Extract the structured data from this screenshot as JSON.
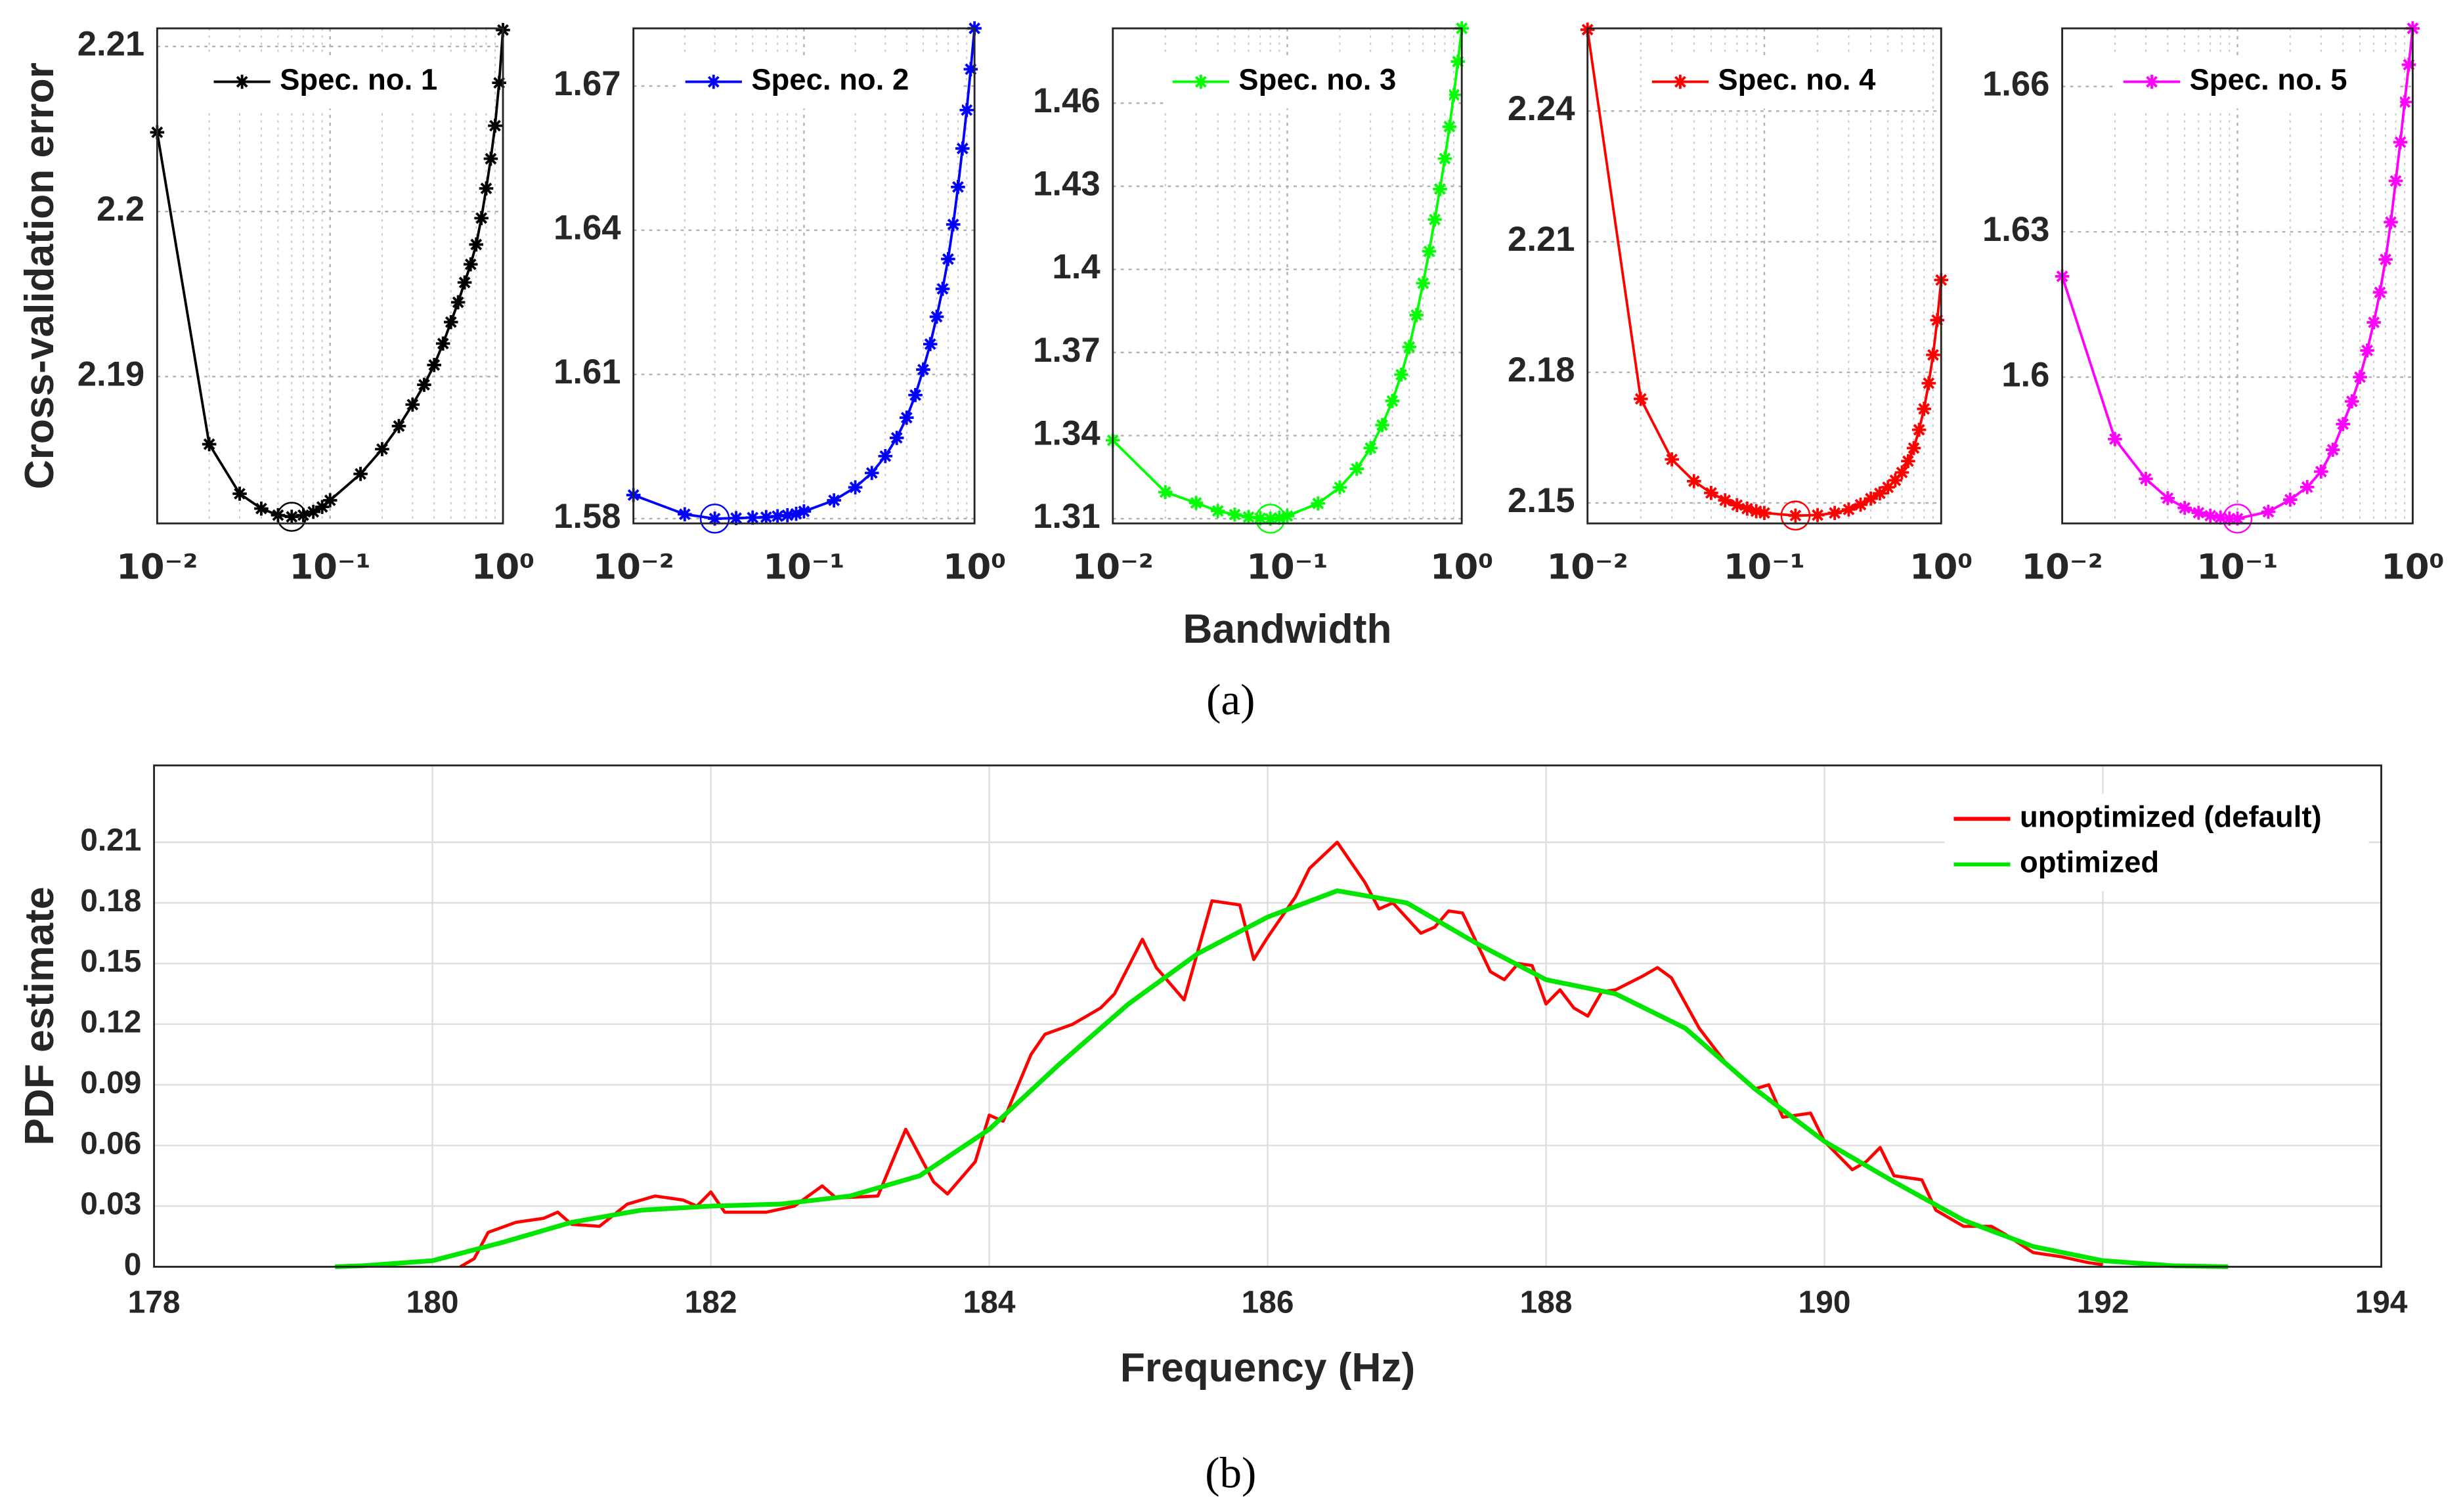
{
  "chart_data": [
    {
      "type": "line",
      "xscale": "log",
      "grid": true,
      "minor_grid": true,
      "legend": "upper right",
      "ylabel": "Cross-validation error",
      "x": [
        0.01,
        0.02,
        0.03,
        0.04,
        0.05,
        0.06,
        0.07,
        0.08,
        0.09,
        0.1,
        0.15,
        0.2,
        0.25,
        0.3,
        0.35,
        0.4,
        0.45,
        0.5,
        0.55,
        0.6,
        0.65,
        0.7,
        0.75,
        0.8,
        0.85,
        0.9,
        0.95,
        1
      ],
      "series": [
        {
          "name": "Spec. no. 1",
          "color": "#000000",
          "marker": "asterisk",
          "values": [
            2.2048,
            2.1859,
            2.1829,
            2.182,
            2.1816,
            2.1815,
            2.1816,
            2.1818,
            2.1821,
            2.1825,
            2.1841,
            2.1856,
            2.187,
            2.1883,
            2.1895,
            2.1907,
            2.192,
            2.1933,
            2.1945,
            2.1957,
            2.1968,
            2.198,
            2.1996,
            2.2014,
            2.2032,
            2.2052,
            2.2078,
            2.211
          ]
        }
      ],
      "minimum": {
        "x": 0.06,
        "y": 2.1815
      },
      "xlim": [
        0.01,
        1
      ],
      "xticks": [
        {
          "value": 0.01,
          "label": "10⁻²"
        },
        {
          "value": 0.1,
          "label": "10⁻¹"
        },
        {
          "value": 1,
          "label": "10⁰"
        }
      ],
      "ylim": [
        2.1811,
        2.2111
      ],
      "yticks": [
        2.19,
        2.2,
        2.21
      ]
    },
    {
      "type": "line",
      "xscale": "log",
      "grid": true,
      "minor_grid": true,
      "legend": "upper right",
      "x": [
        0.01,
        0.02,
        0.03,
        0.04,
        0.05,
        0.06,
        0.07,
        0.08,
        0.09,
        0.1,
        0.15,
        0.2,
        0.25,
        0.3,
        0.35,
        0.4,
        0.45,
        0.5,
        0.55,
        0.6,
        0.65,
        0.7,
        0.75,
        0.8,
        0.85,
        0.9,
        0.95,
        1
      ],
      "series": [
        {
          "name": "Spec. no. 2",
          "color": "#0000ff",
          "marker": "asterisk",
          "values": [
            1.5849,
            1.5809,
            1.58,
            1.5801,
            1.5802,
            1.5803,
            1.5805,
            1.5807,
            1.581,
            1.5815,
            1.5838,
            1.5865,
            1.5895,
            1.593,
            1.5968,
            1.601,
            1.6057,
            1.611,
            1.6163,
            1.622,
            1.6278,
            1.634,
            1.6412,
            1.649,
            1.657,
            1.665,
            1.6735,
            1.682
          ]
        }
      ],
      "minimum": {
        "x": 0.03,
        "y": 1.58
      },
      "xlim": [
        0.01,
        1
      ],
      "xticks": [
        {
          "value": 0.01,
          "label": "10⁻²"
        },
        {
          "value": 0.1,
          "label": "10⁻¹"
        },
        {
          "value": 1,
          "label": "10⁰"
        }
      ],
      "ylim": [
        1.579,
        1.682
      ],
      "yticks": [
        1.58,
        1.61,
        1.64,
        1.67
      ]
    },
    {
      "type": "line",
      "xscale": "log",
      "grid": true,
      "minor_grid": true,
      "legend": "upper right",
      "xlabel": "Bandwidth",
      "caption": "(a)",
      "x": [
        0.01,
        0.02,
        0.03,
        0.04,
        0.05,
        0.06,
        0.07,
        0.08,
        0.09,
        0.1,
        0.15,
        0.2,
        0.25,
        0.3,
        0.35,
        0.4,
        0.45,
        0.5,
        0.55,
        0.6,
        0.65,
        0.7,
        0.75,
        0.8,
        0.85,
        0.9,
        0.95,
        1
      ],
      "series": [
        {
          "name": "Spec. no. 3",
          "color": "#00ff00",
          "marker": "asterisk",
          "values": [
            1.3383,
            1.3196,
            1.3157,
            1.3128,
            1.3115,
            1.3106,
            1.3102,
            1.31,
            1.3103,
            1.311,
            1.3155,
            1.3213,
            1.328,
            1.3355,
            1.3438,
            1.3525,
            1.362,
            1.372,
            1.3835,
            1.395,
            1.4065,
            1.418,
            1.429,
            1.44,
            1.4515,
            1.463,
            1.475,
            1.487
          ]
        }
      ],
      "minimum": {
        "x": 0.08,
        "y": 1.31
      },
      "xlim": [
        0.01,
        1
      ],
      "xticks": [
        {
          "value": 0.01,
          "label": "10⁻²"
        },
        {
          "value": 0.1,
          "label": "10⁻¹"
        },
        {
          "value": 1,
          "label": "10⁰"
        }
      ],
      "ylim": [
        1.3083,
        1.487
      ],
      "yticks": [
        1.31,
        1.34,
        1.37,
        1.4,
        1.43,
        1.46
      ]
    },
    {
      "type": "line",
      "xscale": "log",
      "grid": true,
      "minor_grid": true,
      "legend": "upper right",
      "x": [
        0.01,
        0.02,
        0.03,
        0.04,
        0.05,
        0.06,
        0.07,
        0.08,
        0.09,
        0.1,
        0.15,
        0.2,
        0.25,
        0.3,
        0.35,
        0.4,
        0.45,
        0.5,
        0.55,
        0.6,
        0.65,
        0.7,
        0.75,
        0.8,
        0.85,
        0.9,
        0.95,
        1
      ],
      "series": [
        {
          "name": "Spec. no. 4",
          "color": "#ff0000",
          "marker": "asterisk",
          "values": [
            2.2587,
            2.1739,
            2.16,
            2.155,
            2.1523,
            2.1506,
            2.1495,
            2.1487,
            2.1481,
            2.1477,
            2.1471,
            2.1472,
            2.1477,
            2.1485,
            2.1496,
            2.151,
            2.1522,
            2.1536,
            2.1552,
            2.157,
            2.1596,
            2.1626,
            2.1668,
            2.1716,
            2.1775,
            2.184,
            2.192,
            2.2012
          ]
        }
      ],
      "minimum": {
        "x": 0.15,
        "y": 2.1471
      },
      "xlim": [
        0.01,
        1
      ],
      "xticks": [
        {
          "value": 0.01,
          "label": "10⁻²"
        },
        {
          "value": 0.1,
          "label": "10⁻¹"
        },
        {
          "value": 1,
          "label": "10⁰"
        }
      ],
      "ylim": [
        2.1453,
        2.259
      ],
      "yticks": [
        2.15,
        2.18,
        2.21,
        2.24
      ]
    },
    {
      "type": "line",
      "xscale": "log",
      "grid": true,
      "minor_grid": true,
      "legend": "upper right",
      "x": [
        0.01,
        0.02,
        0.03,
        0.04,
        0.05,
        0.06,
        0.07,
        0.08,
        0.09,
        0.1,
        0.15,
        0.2,
        0.25,
        0.3,
        0.35,
        0.4,
        0.45,
        0.5,
        0.55,
        0.6,
        0.65,
        0.7,
        0.75,
        0.8,
        0.85,
        0.9,
        0.95,
        1
      ],
      "series": [
        {
          "name": "Spec. no. 5",
          "color": "#ff00ff",
          "marker": "asterisk",
          "values": [
            1.6208,
            1.5872,
            1.579,
            1.575,
            1.573,
            1.572,
            1.5714,
            1.571,
            1.5708,
            1.5708,
            1.5722,
            1.5747,
            1.5773,
            1.5805,
            1.585,
            1.5903,
            1.595,
            1.6,
            1.6055,
            1.6113,
            1.6175,
            1.6243,
            1.632,
            1.6405,
            1.6485,
            1.6568,
            1.6645,
            1.672
          ]
        }
      ],
      "minimum": {
        "x": 0.1,
        "y": 1.5708
      },
      "xlim": [
        0.01,
        1
      ],
      "xticks": [
        {
          "value": 0.01,
          "label": "10⁻²"
        },
        {
          "value": 0.1,
          "label": "10⁻¹"
        },
        {
          "value": 1,
          "label": "10⁰"
        }
      ],
      "ylim": [
        1.5698,
        1.672
      ],
      "yticks": [
        1.6,
        1.63,
        1.66
      ]
    },
    {
      "type": "line",
      "grid": true,
      "legend": "upper right",
      "xlabel": "Frequency (Hz)",
      "ylabel": "PDF estimate",
      "caption": "(b)",
      "series": [
        {
          "name": "unoptimized (default)",
          "color": "#ff0000",
          "x": [
            180.2,
            180.3,
            180.4,
            180.6,
            180.8,
            180.9,
            181,
            181.2,
            181.4,
            181.6,
            181.8,
            181.9,
            182,
            182.1,
            182.4,
            182.6,
            182.8,
            182.9,
            183.2,
            183.4,
            183.6,
            183.7,
            183.9,
            184,
            184.1,
            184.3,
            184.4,
            184.6,
            184.8,
            184.9,
            185.1,
            185.2,
            185.4,
            185.6,
            185.8,
            185.9,
            186,
            186.2,
            186.3,
            186.5,
            186.7,
            186.8,
            186.9,
            187.1,
            187.2,
            187.3,
            187.4,
            187.6,
            187.7,
            187.8,
            187.9,
            188,
            188.1,
            188.2,
            188.3,
            188.4,
            188.5,
            188.7,
            188.8,
            188.9,
            189.1,
            189.3,
            189.5,
            189.6,
            189.7,
            189.9,
            190,
            190.2,
            190.3,
            190.4,
            190.5,
            190.7,
            190.8,
            191,
            191.2,
            191.3,
            191.5,
            191.7,
            191.9,
            192
          ],
          "values": [
            0,
            0.004,
            0.017,
            0.022,
            0.024,
            0.027,
            0.021,
            0.02,
            0.031,
            0.035,
            0.033,
            0.03,
            0.037,
            0.027,
            0.027,
            0.03,
            0.04,
            0.034,
            0.035,
            0.068,
            0.042,
            0.036,
            0.052,
            0.075,
            0.072,
            0.105,
            0.115,
            0.12,
            0.128,
            0.135,
            0.162,
            0.148,
            0.132,
            0.181,
            0.179,
            0.152,
            0.163,
            0.183,
            0.197,
            0.21,
            0.19,
            0.177,
            0.18,
            0.165,
            0.168,
            0.176,
            0.175,
            0.146,
            0.142,
            0.15,
            0.149,
            0.13,
            0.137,
            0.128,
            0.124,
            0.136,
            0.137,
            0.144,
            0.148,
            0.143,
            0.118,
            0.1,
            0.088,
            0.09,
            0.074,
            0.076,
            0.062,
            0.048,
            0.052,
            0.059,
            0.045,
            0.043,
            0.028,
            0.02,
            0.02,
            0.016,
            0.007,
            0.005,
            0.002,
            0.001
          ]
        },
        {
          "name": "optimized",
          "color": "#00e600",
          "x": [
            179.3,
            179.5,
            180,
            180.5,
            181,
            181.5,
            182,
            182.5,
            183,
            183.5,
            184,
            184.5,
            185,
            185.5,
            186,
            186.5,
            187,
            187.5,
            188,
            188.5,
            189,
            189.5,
            190,
            190.5,
            191,
            191.5,
            192,
            192.5,
            192.9
          ],
          "values": [
            0,
            0.0005,
            0.003,
            0.012,
            0.022,
            0.028,
            0.03,
            0.031,
            0.035,
            0.045,
            0.068,
            0.1,
            0.13,
            0.155,
            0.173,
            0.186,
            0.18,
            0.16,
            0.142,
            0.135,
            0.118,
            0.088,
            0.062,
            0.042,
            0.023,
            0.01,
            0.003,
            0.0005,
            0
          ]
        }
      ],
      "xlim": [
        178,
        194
      ],
      "xticks": [
        178,
        180,
        182,
        184,
        186,
        188,
        190,
        192,
        194
      ],
      "ylim": [
        0,
        0.248
      ],
      "yticks": [
        0,
        0.03,
        0.06,
        0.09,
        0.12,
        0.15,
        0.18,
        0.21
      ]
    }
  ]
}
